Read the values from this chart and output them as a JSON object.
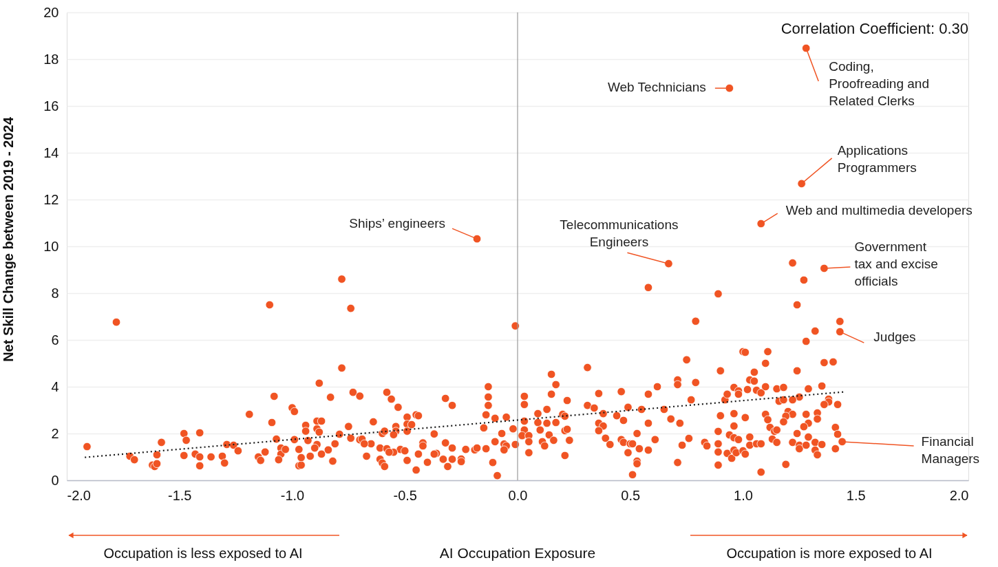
{
  "chart_data": {
    "type": "scatter",
    "xlabel": "AI Occupation Exposure",
    "ylabel": "Net Skill Change between 2019 - 2024",
    "xlim": [
      -2,
      2
    ],
    "ylim": [
      0,
      20
    ],
    "xticks": [
      {
        "value": -2,
        "label": "-2.0"
      },
      {
        "value": -1.5,
        "label": "-1.5"
      },
      {
        "value": -1,
        "label": "-1.0"
      },
      {
        "value": -0.5,
        "label": "-0.5"
      },
      {
        "value": 0,
        "label": "0.0"
      },
      {
        "value": 0.5,
        "label": "0.5"
      },
      {
        "value": 1,
        "label": "1.0"
      },
      {
        "value": 1.5,
        "label": "1.5"
      },
      {
        "value": 2,
        "label": "2.0"
      }
    ],
    "yticks": [
      0,
      2,
      4,
      6,
      8,
      10,
      12,
      14,
      16,
      18,
      20
    ],
    "grid": "y",
    "ref_lines": [
      {
        "axis": "x",
        "value": 0,
        "color": "#9a9a9a"
      }
    ],
    "series": [
      {
        "color": "#f05423",
        "marker": "circle",
        "x": [
          -1.91,
          -1.78,
          -1.72,
          -1.7,
          -1.62,
          -1.61,
          -1.6,
          -1.6,
          -1.58,
          -1.48,
          -1.47,
          -1.48,
          -1.41,
          -1.43,
          -1.41,
          -1.41,
          -1.36,
          -1.31,
          -1.3,
          -1.29,
          -1.26,
          -1.24,
          -1.19,
          -1.15,
          -1.14,
          -1.12,
          -1.1,
          -1.08,
          -1.09,
          -1.07,
          -1.05,
          -1.05,
          -1.06,
          -1.03,
          -0.78,
          -0.74,
          -0.78,
          -0.88,
          -0.01,
          -0.83,
          -0.73,
          -0.7,
          -0.58,
          -0.56,
          -0.53,
          -0.32,
          -0.29,
          -0.13,
          -0.13,
          -0.13,
          -0.14,
          -0.1,
          -0.05,
          -0.02,
          -0.15,
          -0.49,
          -0.45,
          -0.44,
          -0.49,
          -0.47,
          -0.49,
          -0.54,
          -0.54,
          -0.55,
          -0.64,
          -0.6,
          -0.59,
          -0.37,
          -0.42,
          -0.42,
          -0.32,
          -0.29,
          -0.23,
          -0.19,
          -0.18,
          -0.14,
          -0.1,
          -0.07,
          -0.06,
          -0.05,
          -0.06,
          -0.01,
          0.02,
          -0.11,
          -0.09,
          -0.44,
          -0.4,
          -0.45,
          -0.49,
          -0.33,
          -0.31,
          -0.29,
          -0.25,
          -0.25,
          -0.36,
          -0.37,
          -0.52,
          -0.5,
          -0.61,
          -0.58,
          -0.55,
          -0.57,
          -0.61,
          -0.6,
          -0.59,
          -0.67,
          -0.65,
          -0.7,
          -0.69,
          -0.68,
          -0.74,
          -0.75,
          -0.79,
          -0.81,
          -0.84,
          -0.82,
          -0.87,
          -0.89,
          -0.9,
          -0.92,
          -0.97,
          -0.96,
          -0.96,
          -0.97,
          -0.93,
          -0.99,
          -0.94,
          -0.94,
          -0.89,
          -0.88,
          -0.89,
          -0.87,
          -1.0,
          -0.99,
          -0.18,
          0.58,
          0.67,
          0.89,
          0.79,
          0.75,
          0.9,
          0.71,
          0.71,
          0.79,
          0.77,
          0.62,
          0.58,
          0.65,
          0.68,
          0.72,
          0.58,
          0.55,
          0.49,
          0.46,
          0.44,
          0.47,
          0.38,
          0.36,
          0.31,
          0.34,
          0.31,
          0.36,
          0.38,
          0.36,
          0.39,
          0.41,
          0.46,
          0.47,
          0.5,
          0.51,
          0.53,
          0.54,
          0.49,
          0.53,
          0.53,
          0.51,
          0.58,
          0.61,
          0.71,
          0.73,
          0.76,
          0.83,
          0.84,
          0.89,
          0.89,
          0.89,
          0.89,
          0.93,
          0.95,
          0.9,
          0.96,
          0.92,
          0.93,
          0.96,
          0.98,
          0.98,
          1.0,
          0.15,
          0.17,
          0.15,
          0.22,
          0.03,
          0.03,
          0.09,
          0.13,
          0.03,
          0.09,
          0.13,
          0.17,
          0.2,
          0.21,
          0.21,
          0.22,
          0.03,
          0.02,
          0.05,
          0.05,
          0.1,
          0.14,
          0.11,
          0.12,
          0.16,
          0.23,
          0.05,
          0.21,
          1.22,
          1.36,
          1.27,
          1.24,
          1.43,
          1.43,
          1.32,
          1.28,
          1.01,
          1.11,
          1.1,
          1.36,
          1.4,
          1.24,
          1.05,
          1.03,
          1.05,
          1.02,
          1.06,
          1.08,
          1.1,
          1.15,
          1.18,
          1.29,
          1.35,
          1.25,
          1.22,
          1.16,
          1.18,
          1.38,
          1.38,
          1.36,
          1.42,
          1.01,
          1.1,
          1.11,
          1.2,
          1.22,
          1.19,
          1.18,
          1.28,
          1.33,
          1.33,
          1.29,
          1.27,
          1.12,
          1.14,
          1.15,
          1.24,
          1.29,
          1.41,
          1.42,
          0.96,
          0.94,
          0.96,
          0.98,
          1.03,
          1.13,
          1.15,
          1.03,
          1.06,
          1.08,
          1.22,
          1.25,
          1.25,
          1.28,
          1.32,
          1.35,
          1.32,
          1.33,
          1.44,
          1.41,
          0.96,
          0.97,
          1.0,
          1.01,
          1.08,
          1.19,
          0.94,
          1.28,
          1.26,
          1.08
        ],
        "values": [
          1.44,
          6.76,
          1.03,
          0.88,
          0.65,
          0.59,
          0.71,
          1.09,
          1.62,
          2.0,
          1.71,
          1.06,
          2.03,
          1.12,
          1.0,
          0.62,
          1.0,
          1.03,
          0.74,
          1.53,
          1.5,
          1.26,
          2.82,
          1.0,
          0.85,
          1.21,
          7.5,
          3.59,
          2.47,
          1.76,
          1.38,
          1.12,
          0.88,
          1.32,
          8.6,
          7.35,
          4.8,
          4.15,
          6.6,
          3.55,
          3.76,
          3.6,
          3.76,
          3.47,
          3.12,
          3.5,
          3.2,
          4.0,
          3.56,
          3.2,
          2.8,
          2.65,
          2.7,
          2.2,
          2.24,
          2.7,
          2.8,
          2.76,
          2.4,
          2.38,
          2.1,
          2.3,
          2.1,
          1.95,
          2.5,
          2.0,
          2.1,
          1.98,
          1.6,
          1.47,
          1.6,
          1.38,
          1.32,
          1.3,
          1.38,
          1.35,
          1.65,
          2.0,
          1.55,
          1.47,
          1.3,
          1.53,
          1.9,
          0.76,
          0.2,
          1.12,
          0.77,
          0.44,
          0.85,
          0.9,
          0.59,
          0.9,
          0.91,
          0.8,
          1.15,
          1.12,
          1.32,
          1.26,
          1.38,
          1.35,
          1.2,
          1.2,
          0.9,
          0.74,
          0.59,
          1.03,
          1.56,
          1.73,
          1.76,
          1.56,
          1.8,
          2.3,
          1.97,
          1.56,
          1.3,
          0.82,
          1.12,
          1.53,
          1.38,
          1.03,
          0.62,
          0.65,
          0.97,
          1.32,
          1.7,
          1.74,
          2.35,
          2.1,
          2.2,
          2.06,
          2.53,
          2.53,
          3.1,
          2.94,
          10.32,
          8.24,
          9.26,
          7.97,
          6.8,
          5.15,
          4.68,
          4.29,
          4.09,
          4.18,
          3.44,
          4.0,
          3.68,
          3.03,
          2.62,
          2.44,
          2.44,
          3.03,
          3.12,
          3.79,
          2.76,
          2.56,
          2.85,
          3.71,
          3.2,
          3.09,
          4.82,
          2.44,
          2.32,
          2.12,
          1.8,
          1.53,
          1.74,
          1.62,
          1.56,
          1.56,
          2.0,
          1.35,
          1.18,
          0.82,
          0.71,
          0.24,
          1.29,
          1.74,
          0.76,
          1.5,
          1.79,
          1.62,
          1.47,
          2.09,
          1.56,
          1.21,
          0.65,
          1.15,
          0.94,
          2.76,
          2.85,
          3.44,
          3.68,
          3.97,
          3.82,
          3.68,
          5.5,
          4.53,
          4.09,
          3.68,
          3.41,
          3.59,
          3.24,
          2.85,
          3.03,
          2.53,
          2.47,
          2.44,
          2.47,
          2.82,
          2.74,
          2.12,
          2.18,
          2.15,
          1.91,
          1.91,
          1.65,
          2.15,
          1.94,
          1.65,
          1.47,
          1.71,
          1.71,
          1.18,
          1.06,
          9.29,
          9.06,
          8.56,
          7.5,
          6.79,
          6.35,
          6.38,
          5.94,
          5.47,
          5.5,
          5.0,
          5.03,
          5.06,
          4.68,
          4.62,
          4.29,
          4.24,
          3.88,
          3.85,
          3.74,
          4.0,
          3.91,
          3.97,
          3.91,
          4.03,
          3.56,
          3.44,
          3.38,
          3.44,
          3.47,
          3.35,
          3.24,
          3.24,
          2.68,
          2.82,
          2.59,
          2.94,
          2.82,
          2.74,
          2.5,
          2.82,
          2.88,
          2.62,
          2.44,
          2.29,
          2.26,
          2.09,
          2.15,
          2.0,
          1.85,
          2.26,
          1.97,
          2.32,
          1.94,
          1.82,
          1.74,
          1.85,
          1.76,
          1.62,
          1.5,
          1.56,
          1.56,
          1.62,
          1.5,
          1.35,
          1.5,
          1.62,
          1.53,
          1.29,
          1.09,
          1.65,
          1.35,
          1.29,
          1.18,
          1.26,
          1.12,
          0.35,
          0.68,
          16.76,
          18.47,
          12.68,
          10.97
        ]
      },
      {
        "type": "line",
        "color": "#1a1a1a",
        "line_style": "dotted",
        "marker": "none",
        "x": [
          -1.92,
          1.45
        ],
        "values": [
          0.98,
          3.78
        ]
      }
    ],
    "annotations": [
      "Correlation Coefficient: 0.30",
      {
        "text": "Coding,\nProofreading and\nRelated Clerks",
        "x": 1.28,
        "y": 18.47
      },
      {
        "text": "Web Technicians",
        "x": 0.94,
        "y": 16.76
      },
      {
        "text": "Applications\nProgrammers",
        "x": 1.26,
        "y": 12.68
      },
      {
        "text": "Web and multimedia developers",
        "x": 1.08,
        "y": 10.97
      },
      {
        "text": "Ships’ engineers",
        "x": -0.18,
        "y": 10.32
      },
      {
        "text": "Telecommunications\nEngineers",
        "x": 0.67,
        "y": 9.26
      },
      {
        "text": "Government\ntax and excise\nofficials",
        "x": 1.36,
        "y": 9.06
      },
      {
        "text": "Judges",
        "x": 1.43,
        "y": 6.35
      },
      {
        "text": "Financial\nManagers",
        "x": 1.44,
        "y": 1.65
      },
      "Occupation is less exposed to AI",
      "Occupation is more exposed to AI"
    ]
  }
}
